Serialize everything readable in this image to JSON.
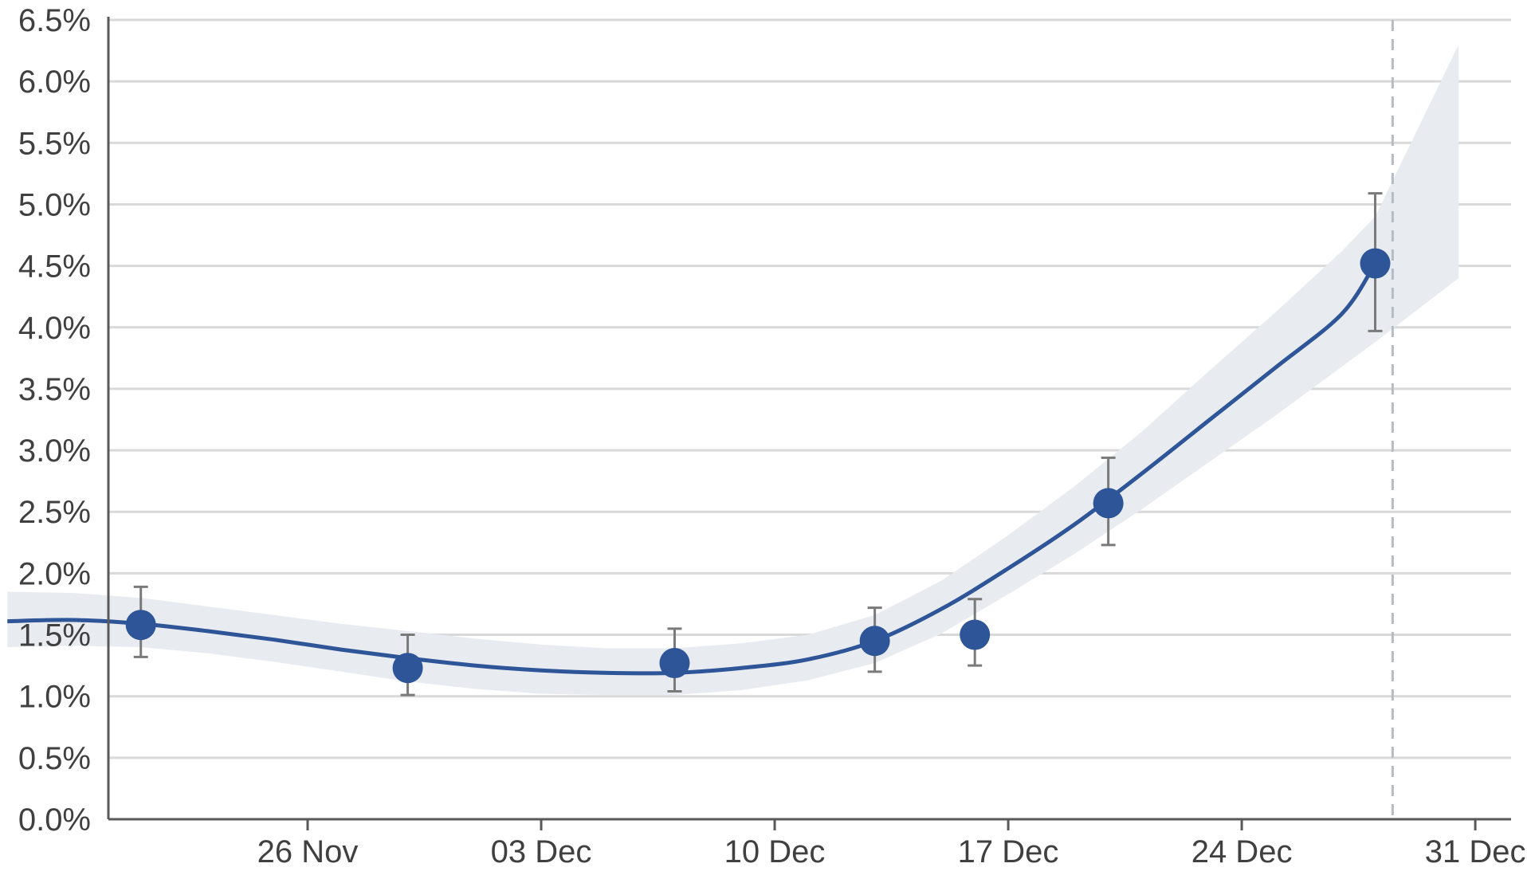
{
  "chart_data": {
    "type": "line",
    "title": "",
    "xlabel": "",
    "ylabel": "",
    "x_axis": {
      "start": "2021-11-17",
      "end": "2021-12-31",
      "tick_labels": [
        {
          "date": "2021-11-26",
          "label": "26 Nov"
        },
        {
          "date": "2021-12-03",
          "label": "03 Dec"
        },
        {
          "date": "2021-12-10",
          "label": "10 Dec"
        },
        {
          "date": "2021-12-17",
          "label": "17 Dec"
        },
        {
          "date": "2021-12-24",
          "label": "24 Dec"
        },
        {
          "date": "2021-12-31",
          "label": "31 Dec"
        }
      ]
    },
    "y_axis": {
      "ylim": [
        0,
        6.5
      ],
      "tick_labels": [
        {
          "value": 0.0,
          "label": "0.0%"
        },
        {
          "value": 0.5,
          "label": "0.5%"
        },
        {
          "value": 1.0,
          "label": "1.0%"
        },
        {
          "value": 1.5,
          "label": "1.5%"
        },
        {
          "value": 2.0,
          "label": "2.0%"
        },
        {
          "value": 2.5,
          "label": "2.5%"
        },
        {
          "value": 3.0,
          "label": "3.0%"
        },
        {
          "value": 3.5,
          "label": "3.5%"
        },
        {
          "value": 4.0,
          "label": "4.0%"
        },
        {
          "value": 4.5,
          "label": "4.5%"
        },
        {
          "value": 5.0,
          "label": "5.0%"
        },
        {
          "value": 5.5,
          "label": "5.5%"
        },
        {
          "value": 6.0,
          "label": "6.0%"
        },
        {
          "value": 6.5,
          "label": "6.5%"
        }
      ]
    },
    "grid": true,
    "reference_line": {
      "date": "2021-12-29",
      "style": "dashed"
    },
    "points": [
      {
        "date": "2021-11-21T00:00",
        "value": 1.58,
        "lower": 1.32,
        "upper": 1.89
      },
      {
        "date": "2021-11-29T00:00",
        "value": 1.23,
        "lower": 1.01,
        "upper": 1.5
      },
      {
        "date": "2021-12-07T00:00",
        "value": 1.27,
        "lower": 1.04,
        "upper": 1.55
      },
      {
        "date": "2021-12-13T00:00",
        "value": 1.45,
        "lower": 1.2,
        "upper": 1.72
      },
      {
        "date": "2021-12-16T00:00",
        "value": 1.5,
        "lower": 1.25,
        "upper": 1.79
      },
      {
        "date": "2021-12-20T00:00",
        "value": 2.57,
        "lower": 2.23,
        "upper": 2.94
      },
      {
        "date": "2021-12-28T00:00",
        "value": 4.52,
        "lower": 3.97,
        "upper": 5.09
      }
    ],
    "trend": [
      {
        "date": "2021-11-17T00:00",
        "value": 1.61,
        "lower": 1.4,
        "upper": 1.85
      },
      {
        "date": "2021-11-19T00:00",
        "value": 1.62,
        "lower": 1.41,
        "upper": 1.84
      },
      {
        "date": "2021-11-21T00:00",
        "value": 1.59,
        "lower": 1.4,
        "upper": 1.8
      },
      {
        "date": "2021-11-23T00:00",
        "value": 1.53,
        "lower": 1.35,
        "upper": 1.73
      },
      {
        "date": "2021-11-25T00:00",
        "value": 1.46,
        "lower": 1.28,
        "upper": 1.66
      },
      {
        "date": "2021-11-27T00:00",
        "value": 1.38,
        "lower": 1.2,
        "upper": 1.59
      },
      {
        "date": "2021-11-29T00:00",
        "value": 1.31,
        "lower": 1.12,
        "upper": 1.53
      },
      {
        "date": "2021-12-01T00:00",
        "value": 1.25,
        "lower": 1.06,
        "upper": 1.47
      },
      {
        "date": "2021-12-03T00:00",
        "value": 1.21,
        "lower": 1.02,
        "upper": 1.42
      },
      {
        "date": "2021-12-05T00:00",
        "value": 1.19,
        "lower": 1.01,
        "upper": 1.39
      },
      {
        "date": "2021-12-07T00:00",
        "value": 1.19,
        "lower": 1.01,
        "upper": 1.39
      },
      {
        "date": "2021-12-09T00:00",
        "value": 1.23,
        "lower": 1.05,
        "upper": 1.43
      },
      {
        "date": "2021-12-11T00:00",
        "value": 1.3,
        "lower": 1.13,
        "upper": 1.5
      },
      {
        "date": "2021-12-13T00:00",
        "value": 1.45,
        "lower": 1.27,
        "upper": 1.66
      },
      {
        "date": "2021-12-15T00:00",
        "value": 1.71,
        "lower": 1.51,
        "upper": 1.94
      },
      {
        "date": "2021-12-17T00:00",
        "value": 2.04,
        "lower": 1.83,
        "upper": 2.31
      },
      {
        "date": "2021-12-19T00:00",
        "value": 2.4,
        "lower": 2.16,
        "upper": 2.71
      },
      {
        "date": "2021-12-21T00:00",
        "value": 2.81,
        "lower": 2.52,
        "upper": 3.15
      },
      {
        "date": "2021-12-23T00:00",
        "value": 3.24,
        "lower": 2.9,
        "upper": 3.64
      },
      {
        "date": "2021-12-25T00:00",
        "value": 3.67,
        "lower": 3.28,
        "upper": 4.12
      },
      {
        "date": "2021-12-27T00:00",
        "value": 4.11,
        "lower": 3.68,
        "upper": 4.62
      },
      {
        "date": "2021-12-28T00:00",
        "value": 4.52,
        "lower": 3.88,
        "upper": 4.9
      },
      {
        "date": "2021-12-30T12:00",
        "value": null,
        "lower": 4.4,
        "upper": 6.3
      }
    ]
  }
}
